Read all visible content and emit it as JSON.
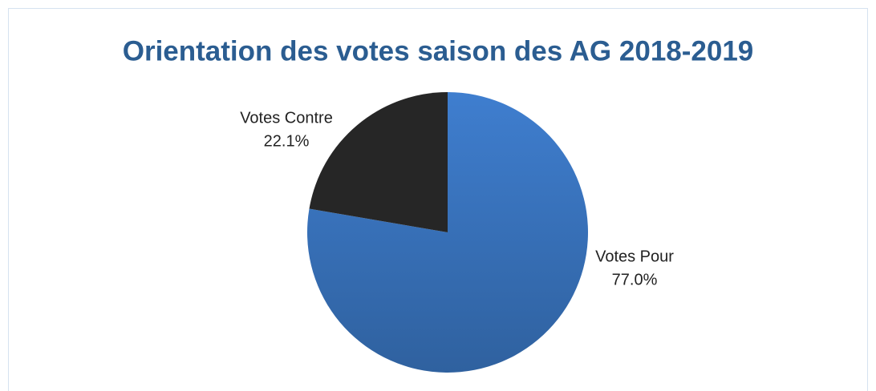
{
  "chart_data": {
    "type": "pie",
    "title": "Orientation des votes saison des AG 2018-2019",
    "categories": [
      "Votes Pour",
      "Votes Contre"
    ],
    "values": [
      77.0,
      22.1
    ],
    "value_labels": [
      "77.0%",
      "22.1%"
    ],
    "colors": [
      "#3a74c2",
      "#262626"
    ]
  }
}
